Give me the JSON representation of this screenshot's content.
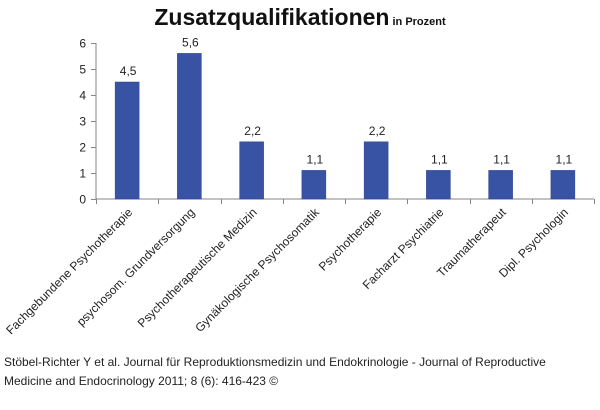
{
  "title": "Zusatzqualifikationen",
  "subtitle": "in Prozent",
  "caption": {
    "line1": "Stöbel-Richter Y et al. Journal für Reproduktionsmedizin und Endokrinologie - Journal of Reproductive",
    "line2": "Medicine and Endocrinology 2011; 8 (6): 416-423 ©"
  },
  "colors": {
    "bar": "#3953a4",
    "bar_edge": "#2d4390",
    "grid": "#868686",
    "axis_text": "#222222"
  },
  "chart_data": {
    "type": "bar",
    "title": "Zusatzqualifikationen",
    "subtitle": "in Prozent",
    "categories": [
      "Fachgebundene Psychotherapie",
      "psychosom. Grundversorgung",
      "Psychotherapeutische Medizin",
      "Gynäkologische Psychosomatik",
      "Psychotherapie",
      "Facharzt Psychiatrie",
      "Traumatherapeut",
      "Dipl. Psychologin"
    ],
    "values": [
      4.5,
      5.6,
      2.2,
      1.1,
      2.2,
      1.1,
      1.1,
      1.1
    ],
    "value_labels": [
      "4,5",
      "5,6",
      "2,2",
      "1,1",
      "2,2",
      "1,1",
      "1,1",
      "1,1"
    ],
    "ylim": [
      0,
      6
    ],
    "yticks": [
      0,
      1,
      2,
      3,
      4,
      5,
      6
    ],
    "xlabel": "",
    "ylabel": "",
    "grid": false,
    "legend": "none"
  }
}
